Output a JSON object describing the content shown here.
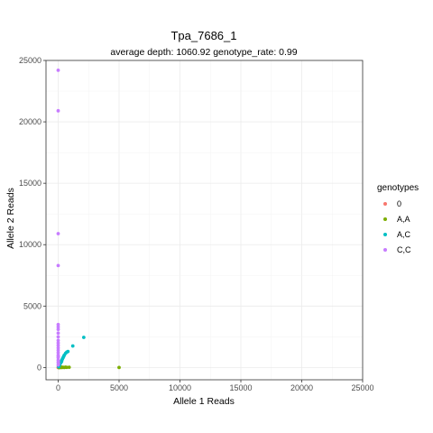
{
  "chart_data": {
    "type": "scatter",
    "title": "Tpa_7686_1",
    "subtitle": "average depth:  1060.92  genotype_rate:  0.99",
    "xlabel": "Allele 1 Reads",
    "ylabel": "Allele 2 Reads",
    "xlim": [
      -1000,
      25000
    ],
    "ylim": [
      -1000,
      25000
    ],
    "xticks": [
      0,
      5000,
      10000,
      15000,
      20000,
      25000
    ],
    "yticks": [
      0,
      5000,
      10000,
      15000,
      20000,
      25000
    ],
    "grid": true,
    "legend": {
      "title": "genotypes",
      "placement": "right",
      "entries": [
        {
          "label": "0",
          "color": "#F8766D"
        },
        {
          "label": "A,A",
          "color": "#7CAE00"
        },
        {
          "label": "A,C",
          "color": "#00BFC4"
        },
        {
          "label": "C,C",
          "color": "#C77CFF"
        }
      ]
    },
    "series": [
      {
        "name": "0",
        "color": "#F8766D",
        "points": [
          [
            0,
            0
          ],
          [
            10,
            5
          ]
        ]
      },
      {
        "name": "A,A",
        "color": "#7CAE00",
        "points": [
          [
            5000,
            0
          ],
          [
            900,
            20
          ],
          [
            700,
            10
          ],
          [
            600,
            30
          ],
          [
            500,
            0
          ],
          [
            400,
            15
          ],
          [
            300,
            5
          ],
          [
            250,
            40
          ],
          [
            200,
            0
          ],
          [
            150,
            20
          ],
          [
            120,
            10
          ],
          [
            100,
            0
          ],
          [
            80,
            0
          ],
          [
            60,
            5
          ]
        ]
      },
      {
        "name": "A,C",
        "color": "#00BFC4",
        "points": [
          [
            2100,
            2450
          ],
          [
            1200,
            1750
          ],
          [
            800,
            1300
          ],
          [
            700,
            1250
          ],
          [
            600,
            1150
          ],
          [
            500,
            1000
          ],
          [
            450,
            900
          ],
          [
            400,
            800
          ],
          [
            350,
            700
          ],
          [
            300,
            600
          ],
          [
            280,
            500
          ],
          [
            250,
            450
          ],
          [
            200,
            400
          ],
          [
            180,
            350
          ],
          [
            150,
            300
          ],
          [
            120,
            250
          ],
          [
            100,
            200
          ],
          [
            80,
            150
          ],
          [
            60,
            100
          ],
          [
            40,
            60
          ]
        ]
      },
      {
        "name": "C,C",
        "color": "#C77CFF",
        "points": [
          [
            0,
            24200
          ],
          [
            0,
            20900
          ],
          [
            0,
            10900
          ],
          [
            0,
            8300
          ],
          [
            0,
            3500
          ],
          [
            0,
            3300
          ],
          [
            0,
            3100
          ],
          [
            0,
            2800
          ],
          [
            0,
            2500
          ],
          [
            0,
            2200
          ],
          [
            0,
            2000
          ],
          [
            0,
            1800
          ],
          [
            0,
            1600
          ],
          [
            0,
            1400
          ],
          [
            0,
            1200
          ],
          [
            0,
            1000
          ],
          [
            0,
            800
          ],
          [
            0,
            600
          ],
          [
            0,
            400
          ],
          [
            0,
            200
          ],
          [
            10,
            900
          ],
          [
            20,
            500
          ],
          [
            30,
            300
          ]
        ]
      }
    ]
  }
}
